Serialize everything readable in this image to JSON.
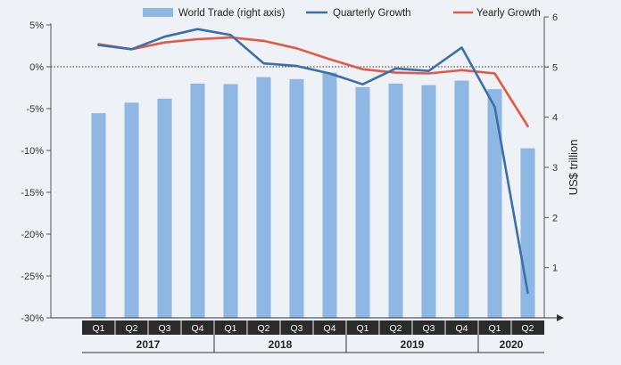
{
  "chart_data": {
    "type": "bar+line",
    "title": "",
    "categories": [
      "Q1",
      "Q2",
      "Q3",
      "Q4",
      "Q1",
      "Q2",
      "Q3",
      "Q4",
      "Q1",
      "Q2",
      "Q3",
      "Q4",
      "Q1",
      "Q2"
    ],
    "year_groups": [
      {
        "label": "2017",
        "count": 4
      },
      {
        "label": "2018",
        "count": 4
      },
      {
        "label": "2019",
        "count": 4
      },
      {
        "label": "2020",
        "count": 2
      }
    ],
    "series": [
      {
        "name": "World Trade (right axis)",
        "type": "bar",
        "axis": "right",
        "color": "#8fb7e3",
        "values": [
          4.08,
          4.29,
          4.37,
          4.67,
          4.66,
          4.8,
          4.76,
          4.89,
          4.6,
          4.67,
          4.64,
          4.73,
          4.56,
          3.38
        ]
      },
      {
        "name": "Quarterly Growth",
        "type": "line",
        "axis": "left",
        "color": "#3b6fa8",
        "values": [
          2.6,
          2.1,
          3.6,
          4.5,
          3.8,
          0.4,
          0.1,
          -0.8,
          -2.1,
          -0.2,
          -0.5,
          2.3,
          -4.8,
          -27.0
        ]
      },
      {
        "name": "Yearly Growth",
        "type": "line",
        "axis": "left",
        "color": "#e05a47",
        "values": [
          2.7,
          2.1,
          2.9,
          3.3,
          3.5,
          3.1,
          2.2,
          0.9,
          -0.3,
          -0.7,
          -0.8,
          -0.4,
          -0.8,
          -7.1
        ]
      }
    ],
    "left_axis": {
      "label": "",
      "ylim": [
        -30,
        5
      ],
      "ticks": [
        "5%",
        "0%",
        "-5%",
        "-10%",
        "-15%",
        "-20%",
        "-25%",
        "-30%"
      ]
    },
    "right_axis": {
      "label": "US$ trillion",
      "ylim": [
        0,
        6
      ],
      "ticks": [
        "1",
        "2",
        "3",
        "4",
        "5",
        "6"
      ]
    },
    "zero_line": "dotted",
    "grid": false,
    "legend_position": "top"
  }
}
